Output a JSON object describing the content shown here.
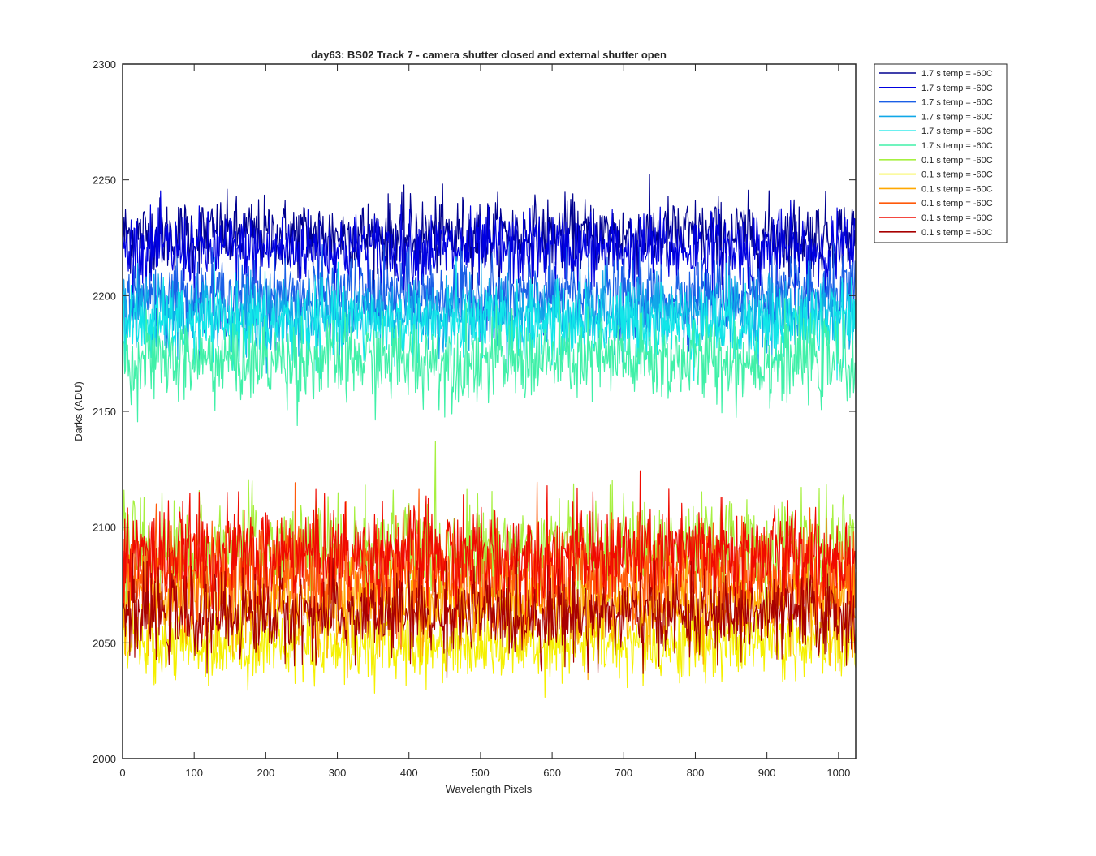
{
  "chart_data": {
    "type": "line",
    "title": "day63: BS02  Track 7 - camera shutter closed and external shutter open",
    "xlabel": "Wavelength Pixels",
    "ylabel": "Darks (ADU)",
    "xlim": [
      0,
      1024
    ],
    "ylim": [
      2000,
      2300
    ],
    "xticks": [
      0,
      100,
      200,
      300,
      400,
      500,
      600,
      700,
      800,
      900,
      1000
    ],
    "yticks": [
      2000,
      2050,
      2100,
      2150,
      2200,
      2250,
      2300
    ],
    "x_range": [
      1,
      1024
    ],
    "legend_position": "outside-right-top",
    "grid": false,
    "series": [
      {
        "name": "1.7 s temp = -60C",
        "color": "#00008F",
        "mean": 2226,
        "noise_sd": 8,
        "min_shown": 2196,
        "max_shown": 2261
      },
      {
        "name": "1.7 s temp = -60C",
        "color": "#0000E0",
        "mean": 2220,
        "noise_sd": 8,
        "min_shown": 2190,
        "max_shown": 2252
      },
      {
        "name": "1.7 s temp = -60C",
        "color": "#1A5FE6",
        "mean": 2200,
        "noise_sd": 8,
        "min_shown": 2168,
        "max_shown": 2232
      },
      {
        "name": "1.7 s temp = -60C",
        "color": "#10A8E8",
        "mean": 2193,
        "noise_sd": 8,
        "min_shown": 2160,
        "max_shown": 2228
      },
      {
        "name": "1.7 s temp = -60C",
        "color": "#10E6E8",
        "mean": 2188,
        "noise_sd": 8,
        "min_shown": 2155,
        "max_shown": 2222
      },
      {
        "name": "1.7 s temp = -60C",
        "color": "#40F0A8",
        "mean": 2172,
        "noise_sd": 9,
        "min_shown": 2127,
        "max_shown": 2205
      },
      {
        "name": "0.1 s temp = -60C",
        "color": "#A6F040",
        "mean": 2090,
        "noise_sd": 11,
        "min_shown": 2045,
        "max_shown": 2150
      },
      {
        "name": "0.1 s temp = -60C",
        "color": "#F5F000",
        "mean": 2050,
        "noise_sd": 8,
        "min_shown": 2017,
        "max_shown": 2090
      },
      {
        "name": "0.1 s temp = -60C",
        "color": "#FFA800",
        "mean": 2068,
        "noise_sd": 10,
        "min_shown": 2030,
        "max_shown": 2134
      },
      {
        "name": "0.1 s temp = -60C",
        "color": "#FF5A0A",
        "mean": 2080,
        "noise_sd": 11,
        "min_shown": 2035,
        "max_shown": 2134
      },
      {
        "name": "0.1 s temp = -60C",
        "color": "#F00A00",
        "mean": 2088,
        "noise_sd": 11,
        "min_shown": 2040,
        "max_shown": 2140
      },
      {
        "name": "0.1 s temp = -60C",
        "color": "#A80000",
        "mean": 2062,
        "noise_sd": 9,
        "min_shown": 2025,
        "max_shown": 2115
      }
    ]
  }
}
